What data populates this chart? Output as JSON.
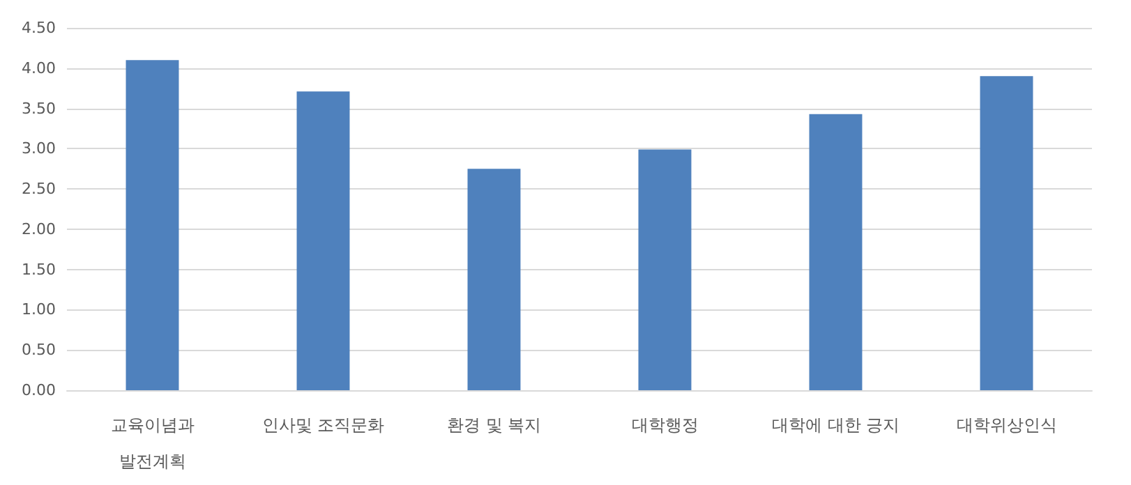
{
  "chart_data": {
    "type": "bar",
    "categories": [
      "교육이념과\n발전계획",
      "인사및 조직문화",
      "환경 및 복지",
      "대학행정",
      "대학에 대한 긍지",
      "대학위상인식"
    ],
    "values": [
      4.1,
      3.71,
      2.75,
      2.99,
      3.43,
      3.9
    ],
    "color": "#4f81bd",
    "ylim": [
      0,
      4.5
    ],
    "yticks": [
      {
        "value": 0,
        "label": "0.00"
      },
      {
        "value": 0.5,
        "label": "0.50"
      },
      {
        "value": 1,
        "label": "1.00"
      },
      {
        "value": 1.5,
        "label": "1.50"
      },
      {
        "value": 2,
        "label": "2.00"
      },
      {
        "value": 2.5,
        "label": "2.50"
      },
      {
        "value": 3,
        "label": "3.00"
      },
      {
        "value": 3.5,
        "label": "3.50"
      },
      {
        "value": 4,
        "label": "4.00"
      },
      {
        "value": 4.5,
        "label": "4.50"
      }
    ],
    "grid": "y"
  }
}
